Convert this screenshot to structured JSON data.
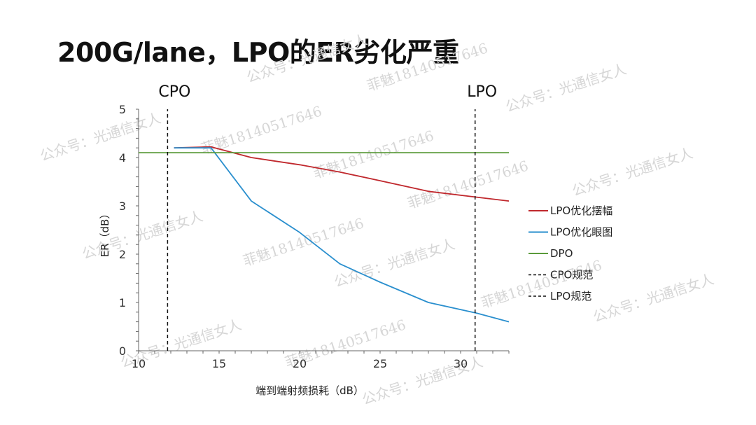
{
  "slide": {
    "title": "200G/lane，LPO的ER劣化严重"
  },
  "watermarks": [
    "公众号：光通信女人",
    "菲魅18140517646"
  ],
  "chart_data": {
    "type": "line",
    "xlabel": "端到端射频损耗（dB）",
    "ylabel": "ER（dB）",
    "xlim": [
      10,
      33
    ],
    "ylim": [
      0,
      5
    ],
    "xticks": [
      10,
      15,
      20,
      25,
      30
    ],
    "yticks": [
      0,
      1,
      2,
      3,
      4,
      5
    ],
    "grid": false,
    "legend_position": "right",
    "series": [
      {
        "name": "LPO优化摆幅",
        "color": "#c0282d",
        "style": "solid",
        "points": [
          [
            12.2,
            4.2
          ],
          [
            14.5,
            4.22
          ],
          [
            17,
            4.0
          ],
          [
            20,
            3.85
          ],
          [
            22.5,
            3.7
          ],
          [
            25,
            3.52
          ],
          [
            28,
            3.3
          ],
          [
            31,
            3.18
          ],
          [
            33,
            3.1
          ]
        ]
      },
      {
        "name": "LPO优化眼图",
        "color": "#2a8fce",
        "style": "solid",
        "points": [
          [
            12.2,
            4.2
          ],
          [
            14.5,
            4.2
          ],
          [
            17,
            3.1
          ],
          [
            20,
            2.45
          ],
          [
            22.5,
            1.8
          ],
          [
            25,
            1.42
          ],
          [
            28,
            1.0
          ],
          [
            31,
            0.78
          ],
          [
            33,
            0.6
          ]
        ]
      },
      {
        "name": "DPO",
        "color": "#5a9a3a",
        "style": "solid",
        "points": [
          [
            10,
            4.1
          ],
          [
            33,
            4.1
          ]
        ]
      },
      {
        "name": "CPO规范",
        "color": "#111111",
        "style": "dashed",
        "vertical_at": 11.8,
        "label": "CPO"
      },
      {
        "name": "LPO规范",
        "color": "#111111",
        "style": "dashed",
        "vertical_at": 30.9,
        "label": "LPO"
      }
    ]
  }
}
